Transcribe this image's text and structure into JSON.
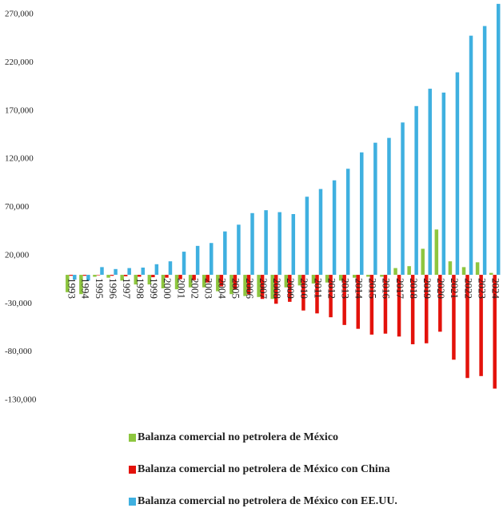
{
  "chart_data": {
    "type": "bar",
    "categories": [
      "1993",
      "1994",
      "1995",
      "1996",
      "1997",
      "1998",
      "1999",
      "2000",
      "2001",
      "2002",
      "2003",
      "2004",
      "2005",
      "2006",
      "2007",
      "2008",
      "2009",
      "2010",
      "2011",
      "2012",
      "2013",
      "2014",
      "2015",
      "2016",
      "2017",
      "2018",
      "2019",
      "2020",
      "2021",
      "2022",
      "2023",
      "2024"
    ],
    "series": [
      {
        "name": "Balanza comercial no petrolera de México",
        "color": "#8dc63f",
        "values": [
          -18000,
          -20000,
          -2000,
          -3000,
          -6000,
          -10000,
          -10000,
          -14000,
          -15000,
          -13000,
          -13000,
          -17000,
          -20000,
          -22000,
          -23000,
          -25000,
          -13000,
          -11000,
          -9000,
          -8000,
          -6000,
          -3000,
          -2000,
          -2000,
          7000,
          9000,
          27000,
          47000,
          14000,
          8000,
          13000,
          2000
        ]
      },
      {
        "name": "Balanza comercial no petrolera de México con China",
        "color": "#e3120b",
        "values": [
          -1000,
          -1000,
          -500,
          -1000,
          -1500,
          -2000,
          -2500,
          -3000,
          -4500,
          -5500,
          -8000,
          -12000,
          -15000,
          -20000,
          -25000,
          -30000,
          -28000,
          -37000,
          -40000,
          -44000,
          -52000,
          -56000,
          -62000,
          -61000,
          -64000,
          -72000,
          -71000,
          -59000,
          -88000,
          -107000,
          -105000,
          -118000
        ]
      },
      {
        "name": "Balanza comercial no petrolera de México con EE.UU.",
        "color": "#3fb0e0",
        "values": [
          -5000,
          -6000,
          8000,
          6000,
          7000,
          7500,
          11000,
          14000,
          24000,
          30000,
          33000,
          45000,
          52000,
          64000,
          67000,
          65000,
          63000,
          81000,
          89000,
          98000,
          110000,
          127000,
          137000,
          142000,
          158000,
          175000,
          193000,
          189000,
          210000,
          248000,
          258000,
          281000
        ]
      }
    ],
    "ylim": [
      -130000,
      285000
    ],
    "yticks": [
      {
        "value": -130000,
        "label": "-130,000"
      },
      {
        "value": -80000,
        "label": "-80,000"
      },
      {
        "value": -30000,
        "label": "-30,000"
      },
      {
        "value": 20000,
        "label": "20,000"
      },
      {
        "value": 70000,
        "label": "70,000"
      },
      {
        "value": 120000,
        "label": "120,000"
      },
      {
        "value": 170000,
        "label": "170,000"
      },
      {
        "value": 220000,
        "label": "220,000"
      },
      {
        "value": 270000,
        "label": "270,000"
      }
    ]
  }
}
